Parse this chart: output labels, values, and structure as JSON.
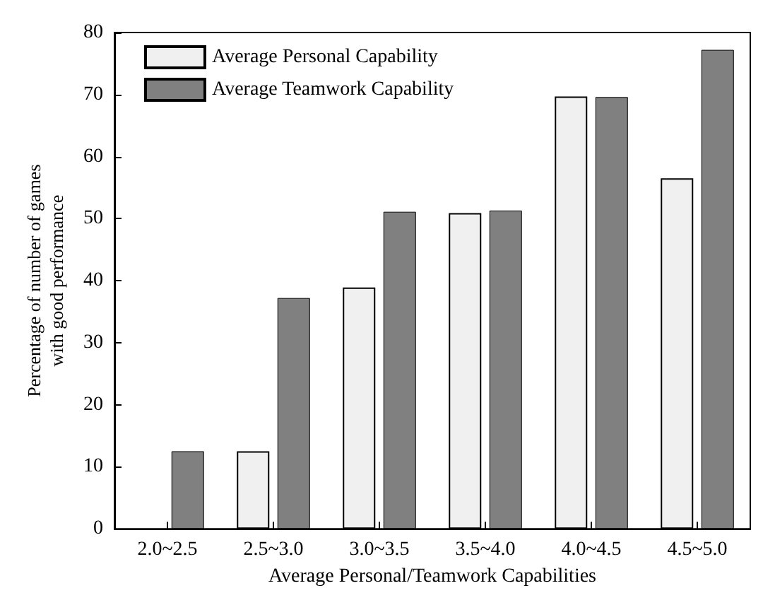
{
  "chart_data": {
    "type": "bar",
    "xlabel": "Average Personal/Teamwork Capabilities",
    "ylabel": "Percentage of number of games\nwith good performance",
    "categories": [
      "2.0~2.5",
      "2.5~3.0",
      "3.0~3.5",
      "3.5~4.0",
      "4.0~4.5",
      "4.5~5.0"
    ],
    "series": [
      {
        "name": "Average Personal Capability",
        "color": "#f0f0f0",
        "values": [
          0,
          12.5,
          38.9,
          50.9,
          69.7,
          56.5
        ]
      },
      {
        "name": "Average Teamwork Capability",
        "color": "#808080",
        "values": [
          12.5,
          37.2,
          51.1,
          51.3,
          69.6,
          77.2
        ]
      }
    ],
    "ylim": [
      0,
      80
    ],
    "yticks": [
      0,
      10,
      20,
      30,
      40,
      50,
      60,
      70,
      80
    ],
    "grid": false,
    "legend": "top left"
  }
}
